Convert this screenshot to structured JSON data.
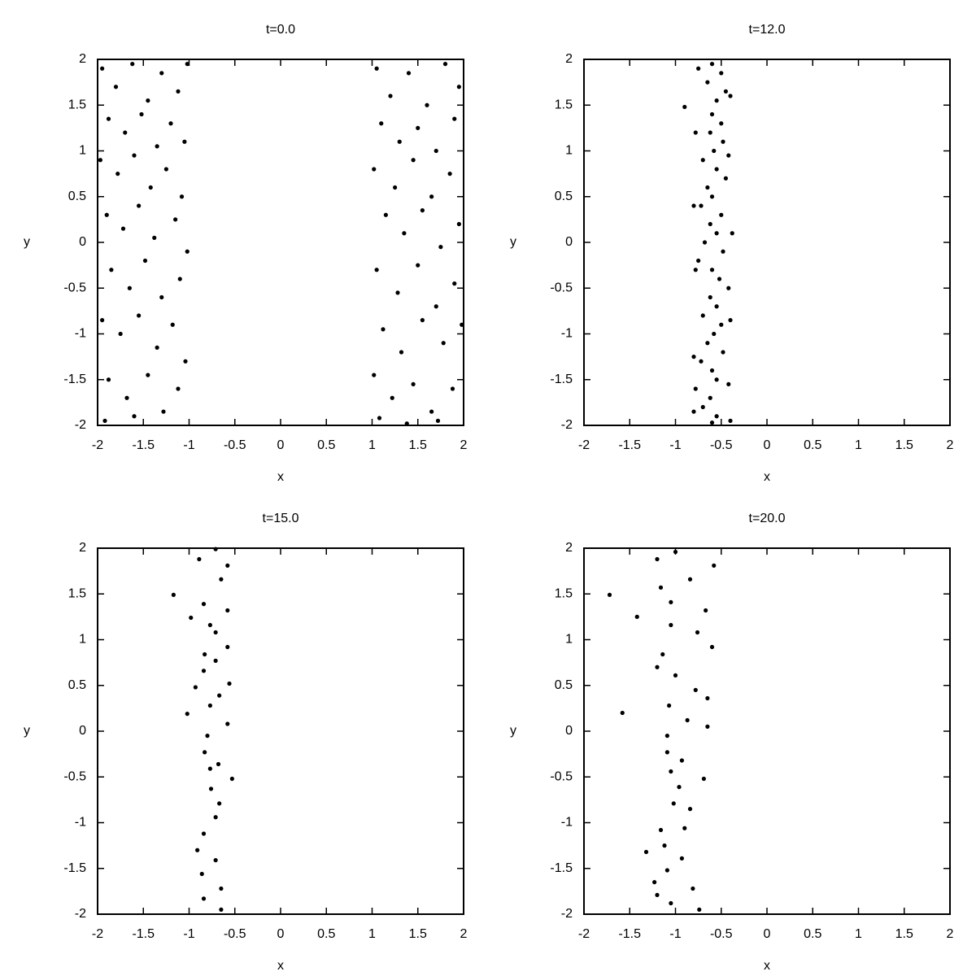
{
  "chart_data": [
    {
      "type": "scatter",
      "title": "t=0.0",
      "xlabel": "x",
      "ylabel": "y",
      "color": "#000000",
      "xlim": [
        -2,
        2
      ],
      "ylim": [
        -2,
        2
      ],
      "xticks": [
        -2,
        -1.5,
        -1,
        -0.5,
        0,
        0.5,
        1,
        1.5,
        2
      ],
      "yticks": [
        -2,
        -1.5,
        -1,
        -0.5,
        0,
        0.5,
        1,
        1.5,
        2
      ],
      "x": [
        -1.95,
        -1.8,
        -1.62,
        -1.45,
        -1.3,
        -1.12,
        -1.02,
        -1.88,
        -1.7,
        -1.52,
        -1.35,
        -1.2,
        -1.05,
        -1.97,
        -1.78,
        -1.6,
        -1.42,
        -1.25,
        -1.08,
        -1.9,
        -1.72,
        -1.55,
        -1.38,
        -1.15,
        -1.02,
        -1.85,
        -1.65,
        -1.48,
        -1.3,
        -1.1,
        -1.95,
        -1.75,
        -1.55,
        -1.35,
        -1.18,
        -1.04,
        -1.88,
        -1.68,
        -1.45,
        -1.28,
        -1.12,
        -1.92,
        -1.6,
        1.05,
        1.2,
        1.4,
        1.6,
        1.8,
        1.95,
        1.1,
        1.3,
        1.5,
        1.7,
        1.9,
        1.02,
        1.25,
        1.45,
        1.65,
        1.85,
        1.15,
        1.35,
        1.55,
        1.75,
        1.95,
        1.05,
        1.28,
        1.5,
        1.7,
        1.9,
        1.12,
        1.32,
        1.55,
        1.78,
        1.98,
        1.02,
        1.22,
        1.45,
        1.65,
        1.88,
        1.08,
        1.38,
        1.72
      ],
      "y": [
        1.9,
        1.7,
        1.95,
        1.55,
        1.85,
        1.65,
        1.95,
        1.35,
        1.2,
        1.4,
        1.05,
        1.3,
        1.1,
        0.9,
        0.75,
        0.95,
        0.6,
        0.8,
        0.5,
        0.3,
        0.15,
        0.4,
        0.05,
        0.25,
        -0.1,
        -0.3,
        -0.5,
        -0.2,
        -0.6,
        -0.4,
        -0.85,
        -1.0,
        -0.8,
        -1.15,
        -0.9,
        -1.3,
        -1.5,
        -1.7,
        -1.45,
        -1.85,
        -1.6,
        -1.95,
        -1.9,
        1.9,
        1.6,
        1.85,
        1.5,
        1.95,
        1.7,
        1.3,
        1.1,
        1.25,
        1.0,
        1.35,
        0.8,
        0.6,
        0.9,
        0.5,
        0.75,
        0.3,
        0.1,
        0.35,
        -0.05,
        0.2,
        -0.3,
        -0.55,
        -0.25,
        -0.7,
        -0.45,
        -0.95,
        -1.2,
        -0.85,
        -1.1,
        -0.9,
        -1.45,
        -1.7,
        -1.55,
        -1.85,
        -1.6,
        -1.92,
        -1.98,
        -1.95
      ]
    },
    {
      "type": "scatter",
      "title": "t=12.0",
      "xlabel": "x",
      "ylabel": "y",
      "color": "#000000",
      "xlim": [
        -2,
        2
      ],
      "ylim": [
        -2,
        2
      ],
      "xticks": [
        -2,
        -1.5,
        -1,
        -0.5,
        0,
        0.5,
        1,
        1.5,
        2
      ],
      "yticks": [
        -2,
        -1.5,
        -1,
        -0.5,
        0,
        0.5,
        1,
        1.5,
        2
      ],
      "x": [
        -0.6,
        -0.5,
        -0.65,
        -0.45,
        -0.55,
        -0.9,
        -0.6,
        -0.5,
        -0.62,
        -0.48,
        -0.58,
        -0.7,
        -0.55,
        -0.45,
        -0.65,
        -0.6,
        -0.72,
        -0.5,
        -0.62,
        -0.55,
        -0.68,
        -0.48,
        -0.75,
        -0.6,
        -0.52,
        -0.42,
        -0.62,
        -0.55,
        -0.7,
        -0.5,
        -0.58,
        -0.65,
        -0.48,
        -0.72,
        -0.6,
        -0.55,
        -0.78,
        -0.62,
        -0.7,
        -0.55,
        -0.6,
        -0.75,
        -0.4,
        -0.78,
        -0.42,
        -0.8,
        -0.38,
        -0.78,
        -0.4,
        -0.8,
        -0.42,
        -0.8,
        -0.4
      ],
      "y": [
        1.95,
        1.85,
        1.75,
        1.65,
        1.55,
        1.48,
        1.4,
        1.3,
        1.2,
        1.1,
        1.0,
        0.9,
        0.8,
        0.7,
        0.6,
        0.5,
        0.4,
        0.3,
        0.2,
        0.1,
        0.0,
        -0.1,
        -0.2,
        -0.3,
        -0.4,
        -0.5,
        -0.6,
        -0.7,
        -0.8,
        -0.9,
        -1.0,
        -1.1,
        -1.2,
        -1.3,
        -1.4,
        -1.5,
        -1.6,
        -1.7,
        -1.8,
        -1.9,
        -1.97,
        1.9,
        1.6,
        1.2,
        0.95,
        0.4,
        0.1,
        -0.3,
        -0.85,
        -1.25,
        -1.55,
        -1.85,
        -1.95
      ]
    },
    {
      "type": "scatter",
      "title": "t=15.0",
      "xlabel": "x",
      "ylabel": "y",
      "color": "#000000",
      "xlim": [
        -2,
        2
      ],
      "ylim": [
        -2,
        2
      ],
      "xticks": [
        -2,
        -1.5,
        -1,
        -0.5,
        0,
        0.5,
        1,
        1.5,
        2
      ],
      "yticks": [
        -2,
        -1.5,
        -1,
        -0.5,
        0,
        0.5,
        1,
        1.5,
        2
      ],
      "x": [
        -0.89,
        -0.71,
        -0.58,
        -0.65,
        -1.17,
        -0.84,
        -0.58,
        -0.98,
        -0.77,
        -0.71,
        -0.58,
        -0.83,
        -0.71,
        -0.84,
        -0.56,
        -0.93,
        -0.67,
        -0.77,
        -1.02,
        -0.58,
        -0.8,
        -0.83,
        -0.68,
        -0.53,
        -0.77,
        -0.76,
        -0.67,
        -0.71,
        -0.84,
        -0.91,
        -0.71,
        -0.86,
        -0.65,
        -0.84,
        -0.65
      ],
      "y": [
        1.88,
        1.99,
        1.81,
        1.66,
        1.49,
        1.39,
        1.32,
        1.24,
        1.16,
        1.08,
        0.92,
        0.84,
        0.77,
        0.66,
        0.52,
        0.48,
        0.39,
        0.28,
        0.19,
        0.08,
        -0.05,
        -0.23,
        -0.36,
        -0.52,
        -0.41,
        -0.63,
        -0.79,
        -0.94,
        -1.12,
        -1.3,
        -1.41,
        -1.56,
        -1.72,
        -1.83,
        -1.95
      ]
    },
    {
      "type": "scatter",
      "title": "t=20.0",
      "xlabel": "x",
      "ylabel": "y",
      "color": "#000000",
      "xlim": [
        -2,
        2
      ],
      "ylim": [
        -2,
        2
      ],
      "xticks": [
        -2,
        -1.5,
        -1,
        -0.5,
        0,
        0.5,
        1,
        1.5,
        2
      ],
      "yticks": [
        -2,
        -1.5,
        -1,
        -0.5,
        0,
        0.5,
        1,
        1.5,
        2
      ],
      "x": [
        -1.72,
        -1.2,
        -1.0,
        -0.58,
        -0.84,
        -1.42,
        -1.16,
        -1.05,
        -1.05,
        -0.76,
        -0.67,
        -0.6,
        -1.14,
        -1.2,
        -1.0,
        -0.78,
        -0.65,
        -1.07,
        -1.58,
        -0.87,
        -0.65,
        -1.09,
        -1.09,
        -0.93,
        -1.05,
        -0.69,
        -0.96,
        -1.02,
        -0.84,
        -0.9,
        -1.16,
        -1.12,
        -1.32,
        -0.93,
        -1.09,
        -1.23,
        -0.81,
        -1.2,
        -1.05,
        -0.74
      ],
      "y": [
        1.49,
        1.88,
        1.96,
        1.81,
        1.66,
        1.25,
        1.57,
        1.41,
        1.16,
        1.08,
        1.32,
        0.92,
        0.84,
        0.7,
        0.61,
        0.45,
        0.36,
        0.28,
        0.2,
        0.12,
        0.05,
        -0.05,
        -0.23,
        -0.32,
        -0.44,
        -0.52,
        -0.61,
        -0.79,
        -0.85,
        -1.06,
        -1.08,
        -1.25,
        -1.32,
        -1.39,
        -1.52,
        -1.65,
        -1.72,
        -1.79,
        -1.88,
        -1.95
      ]
    }
  ]
}
